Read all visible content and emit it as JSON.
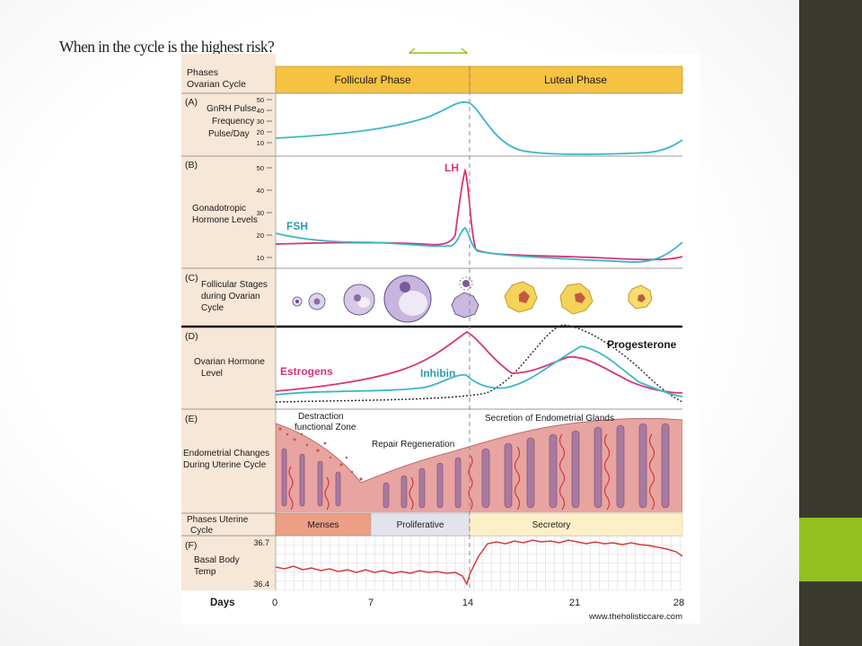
{
  "slide": {
    "title": "When in the cycle is the highest risk?",
    "colors": {
      "band": "#3b3a2f",
      "accent": "#94c120",
      "arrow": "#8fc21f"
    }
  },
  "figure": {
    "header": {
      "row_label_1": "Phases",
      "row_label_2": "Ovarian Cycle",
      "follicular": "Follicular Phase",
      "luteal": "Luteal Phase"
    },
    "panel_a": {
      "letter": "(A)",
      "label_lines": [
        "GnRH Pulse",
        "Frequency",
        "Pulse/Day"
      ],
      "ticks": [
        "50",
        "40",
        "30",
        "20",
        "10"
      ]
    },
    "panel_b": {
      "letter": "(B)",
      "label_lines": [
        "Gonadotropic",
        "Hormone Levels"
      ],
      "ticks": [
        "50",
        "40",
        "30",
        "20",
        "10"
      ],
      "lh": "LH",
      "fsh": "FSH"
    },
    "panel_c": {
      "letter": "(C)",
      "label_lines": [
        "Follicular Stages",
        "during Ovarian",
        "Cycle"
      ]
    },
    "panel_d": {
      "letter": "(D)",
      "label_lines": [
        "Ovarian Hormone",
        "Level"
      ],
      "estrogens": "Estrogens",
      "inhibin": "Inhibin",
      "progesterone": "Progesterone"
    },
    "panel_e": {
      "letter": "(E)",
      "label_lines": [
        "Endometrial Changes",
        "During Uterine Cycle"
      ],
      "destruction_1": "Destraction",
      "destruction_2": "functional Zone",
      "repair": "Repair Regeneration",
      "secretion": "Secretion of Endometrial Glands"
    },
    "uterine_phases": {
      "label_1": "Phases Uterine",
      "label_2": "Cycle",
      "menses": "Menses",
      "proliferative": "Proliferative",
      "secretory": "Secretory"
    },
    "panel_f": {
      "letter": "(F)",
      "label_lines": [
        "Basal Body",
        "Temp"
      ],
      "t_high": "36.7",
      "t_low": "36.4"
    },
    "days": {
      "label": "Days",
      "ticks": [
        "0",
        "7",
        "14",
        "21",
        "28"
      ]
    },
    "watermark": "www.theholisticcare.com",
    "colors": {
      "header": "#f5c242",
      "left_panel": "#f7e7d6",
      "teal": "#3bb7c6",
      "magenta": "#d8327a",
      "menses": "#ec9f84",
      "proliferative": "#e3e3ee",
      "secretory": "#fdf0c8",
      "tissue": "#e8a4a0",
      "gland": "#a97aa0",
      "vessel": "#d43b3b"
    }
  }
}
